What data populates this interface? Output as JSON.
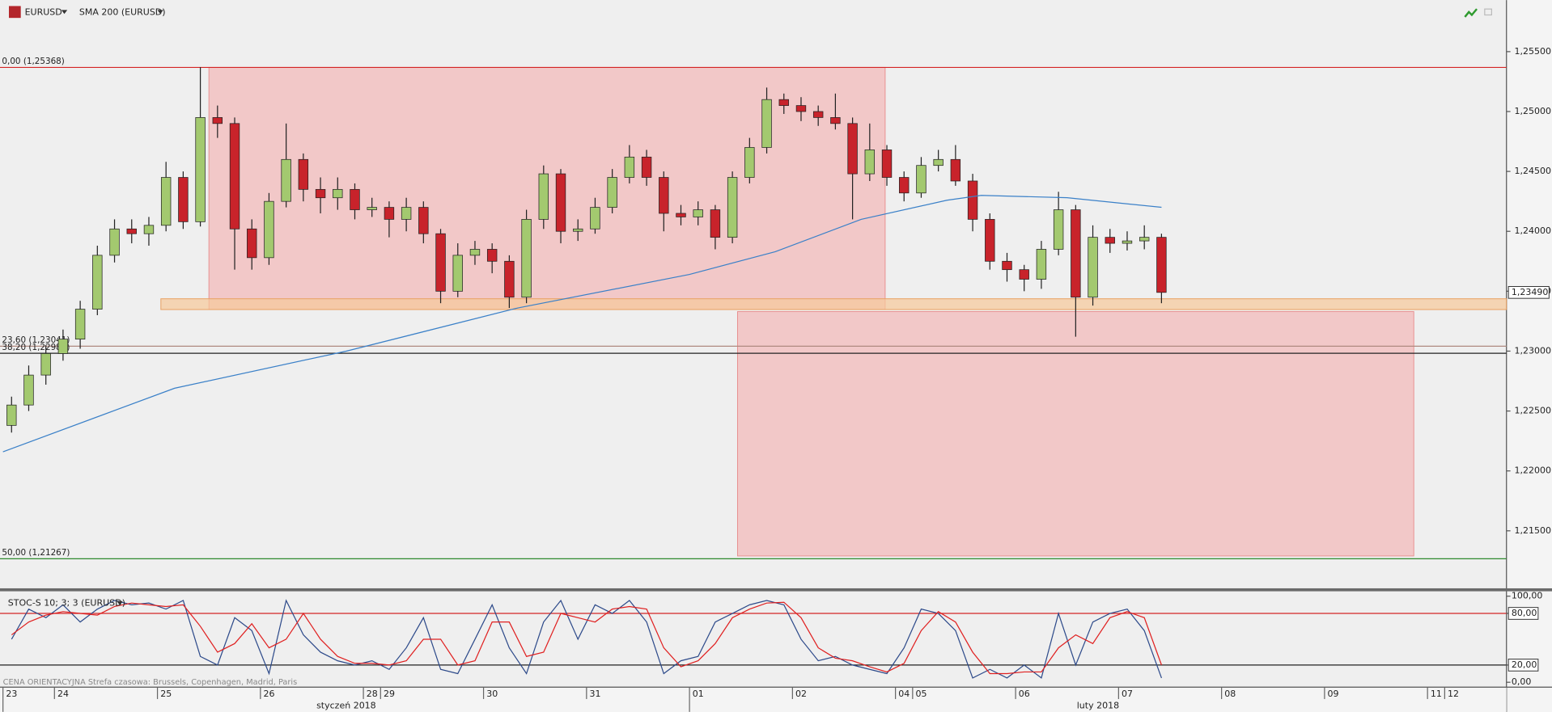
{
  "chart_data": [
    {
      "type": "candlestick",
      "title": "EURUSD",
      "xlim": [
        0,
        87.6
      ],
      "ylim": [
        1.2102,
        1.2593
      ],
      "xticks": [
        {
          "value": 0,
          "label": "23"
        },
        {
          "value": 3,
          "label": "24"
        },
        {
          "value": 9,
          "label": "25"
        },
        {
          "value": 15,
          "label": "26"
        },
        {
          "value": 21,
          "label": "28"
        },
        {
          "value": 22,
          "label": "29"
        },
        {
          "value": 28,
          "label": "30"
        },
        {
          "value": 34,
          "label": "31"
        },
        {
          "value": 40,
          "label": "01"
        },
        {
          "value": 46,
          "label": "02"
        },
        {
          "value": 52,
          "label": "04"
        },
        {
          "value": 53,
          "label": "05"
        },
        {
          "value": 59,
          "label": "06"
        },
        {
          "value": 65,
          "label": "07"
        },
        {
          "value": 71,
          "label": "08"
        },
        {
          "value": 77,
          "label": "09"
        },
        {
          "value": 83,
          "label": "11"
        },
        {
          "value": 84,
          "label": "12"
        }
      ],
      "months": [
        {
          "label": "styczeń 2018",
          "start": 0,
          "end": 40
        },
        {
          "label": "luty 2018",
          "start": 40,
          "end": 87.6
        }
      ],
      "yticks": [
        {
          "value": 1.255,
          "label": "1,25500"
        },
        {
          "value": 1.25,
          "label": "1,25000"
        },
        {
          "value": 1.245,
          "label": "1,24500"
        },
        {
          "value": 1.24,
          "label": "1,24000"
        },
        {
          "value": 1.235,
          "label": "1,23500"
        },
        {
          "value": 1.23,
          "label": "1,23000"
        },
        {
          "value": 1.225,
          "label": "1,22500"
        },
        {
          "value": 1.22,
          "label": "1,22000"
        },
        {
          "value": 1.215,
          "label": "1,21500"
        }
      ],
      "up_color": "#a3c96f",
      "down_color": "#c8232b",
      "open": [
        1.2238,
        1.2255,
        1.228,
        1.2298,
        1.231,
        1.2335,
        1.238,
        1.2402,
        1.2398,
        1.2405,
        1.2445,
        1.2408,
        1.2495,
        1.249,
        1.2402,
        1.2378,
        1.2425,
        1.246,
        1.2435,
        1.2428,
        1.2435,
        1.2418,
        1.242,
        1.241,
        1.242,
        1.2398,
        1.235,
        1.238,
        1.2385,
        1.2375,
        1.2345,
        1.241,
        1.2448,
        1.24,
        1.2402,
        1.242,
        1.2445,
        1.2462,
        1.2445,
        1.2415,
        1.2412,
        1.2418,
        1.2395,
        1.2445,
        1.247,
        1.251,
        1.2505,
        1.25,
        1.2495,
        1.249,
        1.2448,
        1.2468,
        1.2445,
        1.2432,
        1.2455,
        1.246,
        1.2442,
        1.241,
        1.2375,
        1.2368,
        1.236,
        1.2385,
        1.2418,
        1.2345,
        1.2395,
        1.239,
        1.2392,
        1.2395
      ],
      "high": [
        1.2262,
        1.2288,
        1.2305,
        1.2318,
        1.2342,
        1.2388,
        1.241,
        1.241,
        1.2412,
        1.2458,
        1.245,
        1.2537,
        1.2505,
        1.2495,
        1.241,
        1.2432,
        1.249,
        1.2465,
        1.2445,
        1.2445,
        1.244,
        1.2428,
        1.2425,
        1.2428,
        1.2425,
        1.2402,
        1.239,
        1.2392,
        1.239,
        1.238,
        1.2418,
        1.2455,
        1.2452,
        1.241,
        1.2428,
        1.2452,
        1.2472,
        1.2468,
        1.245,
        1.2422,
        1.2425,
        1.2422,
        1.245,
        1.2478,
        1.252,
        1.2515,
        1.2512,
        1.2505,
        1.2515,
        1.2495,
        1.249,
        1.2472,
        1.245,
        1.2462,
        1.2468,
        1.2472,
        1.2448,
        1.2415,
        1.2382,
        1.2372,
        1.2392,
        1.2433,
        1.2422,
        1.2405,
        1.2402,
        1.24,
        1.2405,
        1.2398
      ],
      "low": [
        1.2232,
        1.225,
        1.2272,
        1.2292,
        1.2302,
        1.233,
        1.2374,
        1.239,
        1.2388,
        1.24,
        1.2402,
        1.2404,
        1.2478,
        1.2368,
        1.2368,
        1.2372,
        1.242,
        1.2425,
        1.2415,
        1.2418,
        1.241,
        1.2412,
        1.2395,
        1.24,
        1.239,
        1.234,
        1.2345,
        1.2372,
        1.2365,
        1.2336,
        1.234,
        1.2402,
        1.239,
        1.2392,
        1.2398,
        1.2415,
        1.244,
        1.2438,
        1.24,
        1.2405,
        1.2405,
        1.2385,
        1.239,
        1.244,
        1.2465,
        1.2498,
        1.2492,
        1.2488,
        1.2485,
        1.241,
        1.2442,
        1.2438,
        1.2425,
        1.2428,
        1.245,
        1.2438,
        1.24,
        1.2368,
        1.2358,
        1.235,
        1.2352,
        1.238,
        1.2312,
        1.2338,
        1.2382,
        1.2384,
        1.2385,
        1.234
      ],
      "close": [
        1.2255,
        1.228,
        1.2298,
        1.231,
        1.2335,
        1.238,
        1.2402,
        1.2398,
        1.2405,
        1.2445,
        1.2408,
        1.2495,
        1.249,
        1.2402,
        1.2378,
        1.2425,
        1.246,
        1.2435,
        1.2428,
        1.2435,
        1.2418,
        1.242,
        1.241,
        1.242,
        1.2398,
        1.235,
        1.238,
        1.2385,
        1.2375,
        1.2345,
        1.241,
        1.2448,
        1.24,
        1.2402,
        1.242,
        1.2445,
        1.2462,
        1.2445,
        1.2415,
        1.2412,
        1.2418,
        1.2395,
        1.2445,
        1.247,
        1.251,
        1.2505,
        1.25,
        1.2495,
        1.249,
        1.2448,
        1.2468,
        1.2445,
        1.2432,
        1.2455,
        1.246,
        1.2442,
        1.241,
        1.2375,
        1.2368,
        1.236,
        1.2385,
        1.2418,
        1.2345,
        1.2395,
        1.239,
        1.2392,
        1.2395,
        1.2349
      ],
      "sma": {
        "name": "SMA 200 (EURUSD)",
        "color": "#3a80c8",
        "x": [
          0,
          10,
          20,
          30,
          40,
          45,
          50,
          55,
          57,
          62,
          67.5
        ],
        "values": [
          1.2216,
          1.2269,
          1.23,
          1.2336,
          1.2364,
          1.2383,
          1.241,
          1.2426,
          1.243,
          1.2428,
          1.242
        ]
      },
      "levels": [
        {
          "value": 1.25368,
          "label": "0,00 (1,25368)",
          "color": "#d42424"
        },
        {
          "value": 1.23041,
          "label": "23,60 (1,23041)",
          "color": "#b08a80"
        },
        {
          "value": 1.22982,
          "label": "38,20 (1,22982)",
          "color": "#222222"
        },
        {
          "value": 1.21267,
          "label": "50,00 (1,21267)",
          "color": "#2f8a2f"
        }
      ],
      "zones": [
        {
          "x": [
            12.0,
            51.4
          ],
          "y": [
            1.23347,
            1.25368
          ],
          "color": "#f4b8b8",
          "stroke": "#e89090"
        },
        {
          "x": [
            42.8,
            82.2
          ],
          "y": [
            1.2129,
            1.2333
          ],
          "color": "#f4b8b8",
          "stroke": "#e89090"
        },
        {
          "x": [
            9.2,
            87.6
          ],
          "y": [
            1.23347,
            1.23437
          ],
          "color": "#f7c99a",
          "stroke": "#e8a060"
        }
      ],
      "last_price": {
        "value": 1.2349,
        "label": "1,23490"
      }
    },
    {
      "type": "stochastic",
      "title": "STOC-S 10; 3; 3 (EURUSD)",
      "ylim": [
        -5.7,
        105.7
      ],
      "yticks": [
        {
          "value": 100,
          "label": "100,00"
        },
        {
          "value": 80,
          "label": "80,00"
        },
        {
          "value": 20,
          "label": "20,00"
        },
        {
          "value": 0,
          "label": "0,00"
        }
      ],
      "levels": [
        {
          "value": 80,
          "color": "#d42424"
        },
        {
          "value": 20,
          "color": "#222222"
        }
      ],
      "series": [
        {
          "color": "#2d4a8a",
          "values": [
            50,
            85,
            75,
            90,
            70,
            85,
            95,
            90,
            92,
            85,
            95,
            30,
            20,
            75,
            60,
            10,
            95,
            55,
            35,
            25,
            20,
            25,
            15,
            40,
            75,
            15,
            10,
            50,
            90,
            40,
            10,
            70,
            95,
            50,
            90,
            80,
            95,
            70,
            10,
            25,
            30,
            70,
            80,
            90,
            95,
            90,
            50,
            25,
            30,
            20,
            15,
            10,
            40,
            85,
            80,
            60,
            5,
            15,
            5,
            20,
            5,
            80,
            20,
            70,
            80,
            85,
            60,
            5
          ]
        },
        {
          "color": "#e02020",
          "values": [
            55,
            70,
            78,
            82,
            80,
            78,
            88,
            92,
            90,
            88,
            90,
            65,
            35,
            45,
            68,
            40,
            50,
            80,
            50,
            30,
            22,
            22,
            20,
            25,
            50,
            50,
            20,
            25,
            70,
            70,
            30,
            35,
            80,
            75,
            70,
            85,
            88,
            85,
            40,
            18,
            25,
            45,
            75,
            85,
            92,
            93,
            75,
            40,
            28,
            25,
            18,
            12,
            22,
            60,
            82,
            70,
            35,
            10,
            10,
            12,
            12,
            40,
            55,
            45,
            75,
            82,
            75,
            20
          ]
        }
      ]
    }
  ],
  "footer_note": "CENA ORIENTACYJNA    Strefa czasowa: Brussels, Copenhagen, Madrid, Paris"
}
